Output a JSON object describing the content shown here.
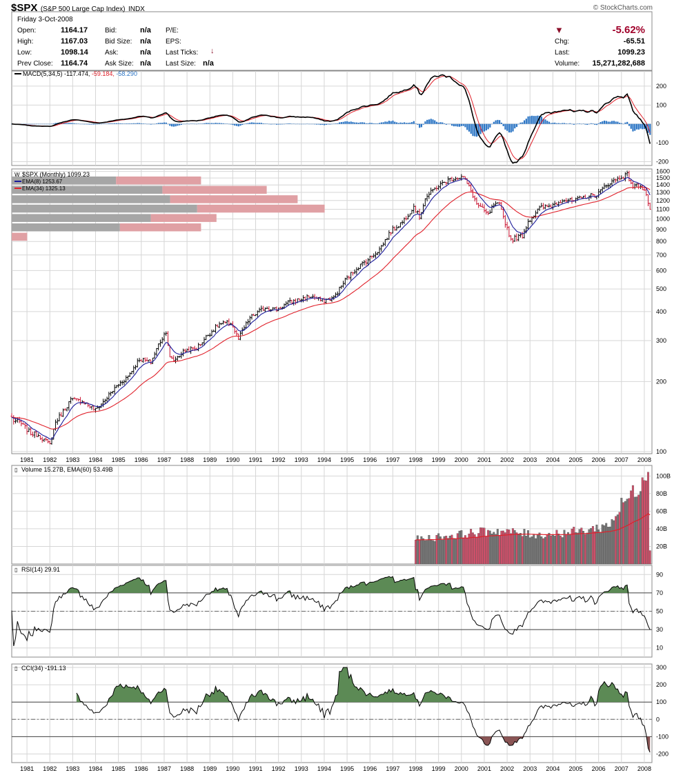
{
  "header": {
    "symbol": "$SPX",
    "name": "(S&P 500 Large Cap Index)",
    "exchange": "INDX",
    "watermark": "© StockCharts.com",
    "date": "Friday  3-Oct-2008",
    "open_label": "Open:",
    "open": "1164.17",
    "high_label": "High:",
    "high": "1167.03",
    "low_label": "Low:",
    "low": "1098.14",
    "prev_label": "Prev Close:",
    "prev": "1164.74",
    "bid_label": "Bid:",
    "bid": "n/a",
    "bidsize_label": "Bid Size:",
    "bidsize": "n/a",
    "ask_label": "Ask:",
    "ask": "n/a",
    "asksize_label": "Ask Size:",
    "asksize": "n/a",
    "pe_label": "P/E:",
    "eps_label": "EPS:",
    "lastticks_label": "Last Ticks:",
    "lastsize_label": "Last Size:",
    "lastsize": "n/a",
    "chg_pct": "-5.62%",
    "chg_label": "Chg:",
    "chg": "-65.51",
    "last_label": "Last:",
    "last": "1099.23",
    "volume_label": "Volume:",
    "volume": "15,271,282,688",
    "down_color": "#8b0f2a"
  },
  "x_axis_years": [
    "1981",
    "1982",
    "1983",
    "1984",
    "1985",
    "1986",
    "1987",
    "1988",
    "1989",
    "1990",
    "1991",
    "1992",
    "1993",
    "1994",
    "1995",
    "1996",
    "1997",
    "1998",
    "1999",
    "2000",
    "2001",
    "2002",
    "2003",
    "2004",
    "2005",
    "2006",
    "2007",
    "2008"
  ],
  "panels": {
    "macd": {
      "label_name": "MACD(5,34,5)",
      "label_v1": "-117.474",
      "label_v2": "-59.184",
      "label_v3": "-58.290",
      "ticks": [
        "200",
        "100",
        "0",
        "-100",
        "-200"
      ],
      "tick_values": [
        200,
        100,
        0,
        -100,
        -200
      ],
      "ylim": [
        -220,
        280
      ]
    },
    "price": {
      "label_main": "$SPX (Monthly) 1099.23",
      "ema8_label": "EMA(8) 1253.67",
      "ema34_label": "EMA(34) 1325.13",
      "ticks": [
        "1600",
        "1500",
        "1400",
        "1300",
        "1200",
        "1100",
        "1000",
        "900",
        "800",
        "700",
        "600",
        "500",
        "400",
        "300",
        "200",
        "100"
      ],
      "tick_values": [
        1600,
        1500,
        1400,
        1300,
        1200,
        1100,
        1000,
        900,
        800,
        700,
        600,
        500,
        400,
        300,
        200,
        100
      ],
      "scale": "log",
      "ylim": [
        98,
        1640
      ]
    },
    "volume": {
      "label": "Volume 15.27B, EMA(60) 53.49B",
      "ticks": [
        "100B",
        "80B",
        "60B",
        "40B",
        "20B"
      ],
      "tick_values": [
        100,
        80,
        60,
        40,
        20
      ],
      "ylim": [
        0,
        112
      ]
    },
    "rsi": {
      "label": "RSI(14) 29.91",
      "ticks": [
        "90",
        "70",
        "50",
        "30",
        "10"
      ],
      "tick_values": [
        90,
        70,
        50,
        30,
        10
      ],
      "ylim": [
        0,
        100
      ]
    },
    "cci": {
      "label": "CCI(34) -191.13",
      "ticks": [
        "300",
        "200",
        "100",
        "0",
        "-100",
        "-200"
      ],
      "tick_values": [
        300,
        200,
        100,
        0,
        -100,
        -200
      ],
      "ylim": [
        -250,
        320
      ]
    }
  },
  "colors": {
    "macd": "#000000",
    "signal": "#e0202a",
    "hist": "#2a74c4",
    "ema8": "#1a1a9a",
    "ema34": "#e0202a",
    "up": "#000000",
    "down": "#c8102e",
    "vol_up": "#777777",
    "vol_down": "#d0506a",
    "fill_pos": "#5c8a55",
    "fill_neg": "#8a5555",
    "grid": "#d6d6d6",
    "vbp_gray": "#a6a6a6",
    "vbp_red": "#e0a0a4"
  },
  "chart_data": {
    "type": "line",
    "title": "$SPX (S&P 500 Large Cap Index) Monthly",
    "x_range": [
      "1980-11",
      "2008-10"
    ],
    "yscale": "log",
    "price_keypoints": [
      [
        "1980-11",
        140
      ],
      [
        "1980-12",
        136
      ],
      [
        "1981-03",
        134
      ],
      [
        "1981-09",
        120
      ],
      [
        "1982-01",
        118
      ],
      [
        "1982-07",
        107
      ],
      [
        "1982-10",
        134
      ],
      [
        "1983-01",
        145
      ],
      [
        "1983-06",
        167
      ],
      [
        "1983-12",
        165
      ],
      [
        "1984-07",
        151
      ],
      [
        "1984-12",
        167
      ],
      [
        "1985-06",
        191
      ],
      [
        "1985-12",
        211
      ],
      [
        "1986-06",
        250
      ],
      [
        "1986-12",
        242
      ],
      [
        "1987-04",
        288
      ],
      [
        "1987-08",
        330
      ],
      [
        "1987-10",
        252
      ],
      [
        "1987-12",
        247
      ],
      [
        "1988-06",
        273
      ],
      [
        "1988-12",
        278
      ],
      [
        "1989-06",
        318
      ],
      [
        "1989-12",
        353
      ],
      [
        "1990-06",
        358
      ],
      [
        "1990-10",
        304
      ],
      [
        "1990-12",
        330
      ],
      [
        "1991-04",
        375
      ],
      [
        "1991-12",
        417
      ],
      [
        "1992-06",
        408
      ],
      [
        "1992-12",
        436
      ],
      [
        "1993-06",
        450
      ],
      [
        "1993-12",
        466
      ],
      [
        "1994-06",
        444
      ],
      [
        "1994-12",
        459
      ],
      [
        "1995-06",
        545
      ],
      [
        "1995-12",
        615
      ],
      [
        "1996-06",
        670
      ],
      [
        "1996-12",
        740
      ],
      [
        "1997-06",
        885
      ],
      [
        "1997-12",
        970
      ],
      [
        "1998-06",
        1133
      ],
      [
        "1998-09",
        1017
      ],
      [
        "1998-12",
        1229
      ],
      [
        "1999-06",
        1372
      ],
      [
        "1999-12",
        1469
      ],
      [
        "2000-03",
        1498
      ],
      [
        "2000-08",
        1517
      ],
      [
        "2000-12",
        1320
      ],
      [
        "2001-03",
        1160
      ],
      [
        "2001-09",
        1040
      ],
      [
        "2001-12",
        1148
      ],
      [
        "2002-03",
        1147
      ],
      [
        "2002-07",
        911
      ],
      [
        "2002-09",
        815
      ],
      [
        "2003-03",
        848
      ],
      [
        "2003-06",
        975
      ],
      [
        "2003-12",
        1112
      ],
      [
        "2004-06",
        1140
      ],
      [
        "2004-12",
        1212
      ],
      [
        "2005-06",
        1191
      ],
      [
        "2005-12",
        1248
      ],
      [
        "2006-06",
        1270
      ],
      [
        "2006-12",
        1418
      ],
      [
        "2007-06",
        1503
      ],
      [
        "2007-10",
        1549
      ],
      [
        "2008-01",
        1378
      ],
      [
        "2008-05",
        1400
      ],
      [
        "2008-08",
        1282
      ],
      [
        "2008-09",
        1166
      ],
      [
        "2008-10",
        1099
      ]
    ],
    "ema8_last": 1253.67,
    "ema34_last": 1325.13,
    "macd_last": -117.474,
    "macd_signal_last": -59.184,
    "macd_hist_last": -58.29,
    "rsi_last": 29.91,
    "cci_last": -191.13,
    "volume_last_B": 15.27,
    "volume_ema60_last_B": 53.49,
    "volume_start": "1998-07",
    "volume_keypoints_B": [
      [
        "1998-07",
        28
      ],
      [
        "1999-12",
        32
      ],
      [
        "2001-12",
        38
      ],
      [
        "2003-12",
        33
      ],
      [
        "2005-12",
        38
      ],
      [
        "2006-12",
        44
      ],
      [
        "2007-08",
        70
      ],
      [
        "2008-01",
        80
      ],
      [
        "2008-09",
        110
      ],
      [
        "2008-10",
        15.27
      ]
    ],
    "volume_by_price_rows": [
      {
        "gray": 0.54,
        "red": 0.44
      },
      {
        "gray": 0.78,
        "red": 0.54
      },
      {
        "gray": 0.82,
        "red": 0.66
      },
      {
        "gray": 0.96,
        "red": 0.66
      },
      {
        "gray": 0.72,
        "red": 0.34
      },
      {
        "gray": 0.56,
        "red": 0.42
      },
      {
        "gray": 0.0,
        "red": 0.08
      }
    ]
  }
}
